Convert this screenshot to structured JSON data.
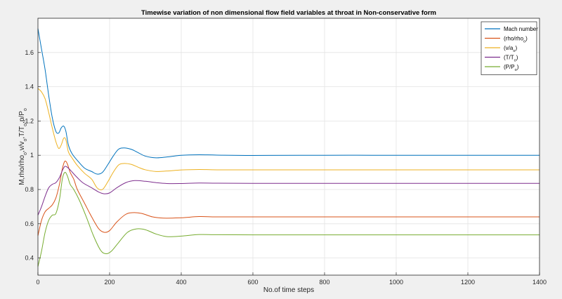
{
  "chart_data": {
    "type": "line",
    "title": "Timewise variation of non dimensional flow field variables at throat in Non-conservative form",
    "xlabel": "No.of time steps",
    "ylabel": "M,rho/rho",
    "ylabel_parts": [
      {
        "t": "M,rho/rho",
        "sub": false
      },
      {
        "t": "o",
        "sub": true
      },
      {
        "t": ",v/v",
        "sub": false
      },
      {
        "t": "o",
        "sub": true
      },
      {
        "t": ",T/T",
        "sub": false
      },
      {
        "t": "o",
        "sub": true
      },
      {
        "t": ",p/P",
        "sub": false
      },
      {
        "t": "o",
        "sub": true
      }
    ],
    "xlim": [
      0,
      1400
    ],
    "ylim": [
      0.3,
      1.8
    ],
    "xticks": [
      0,
      200,
      400,
      600,
      800,
      1000,
      1200,
      1400
    ],
    "yticks": [
      0.4,
      0.6,
      0.8,
      1.0,
      1.2,
      1.4,
      1.6
    ],
    "ytick_labels": [
      "0.4",
      "0.6",
      "0.8",
      "1",
      "1.2",
      "1.4",
      "1.6"
    ],
    "grid": true,
    "legend_position": "top-right",
    "series": [
      {
        "name": "Mach number",
        "color": "#0072BD",
        "label_parts": [
          {
            "t": "Mach number",
            "sub": false
          }
        ],
        "points": [
          [
            0,
            1.74
          ],
          [
            10,
            1.62
          ],
          [
            20,
            1.5
          ],
          [
            30,
            1.35
          ],
          [
            40,
            1.22
          ],
          [
            50,
            1.14
          ],
          [
            58,
            1.13
          ],
          [
            65,
            1.16
          ],
          [
            72,
            1.17
          ],
          [
            78,
            1.14
          ],
          [
            85,
            1.06
          ],
          [
            95,
            1.01
          ],
          [
            110,
            0.97
          ],
          [
            130,
            0.925
          ],
          [
            150,
            0.905
          ],
          [
            165,
            0.89
          ],
          [
            180,
            0.9
          ],
          [
            195,
            0.945
          ],
          [
            210,
            0.995
          ],
          [
            225,
            1.035
          ],
          [
            240,
            1.043
          ],
          [
            260,
            1.035
          ],
          [
            280,
            1.015
          ],
          [
            300,
            0.995
          ],
          [
            330,
            0.985
          ],
          [
            360,
            0.99
          ],
          [
            400,
            1.0
          ],
          [
            450,
            1.003
          ],
          [
            500,
            1.001
          ],
          [
            600,
            0.999
          ],
          [
            800,
            1.0
          ],
          [
            1000,
            1.0
          ],
          [
            1200,
            1.0
          ],
          [
            1400,
            1.0
          ]
        ]
      },
      {
        "name": "(rho/rho_o)",
        "color": "#D95319",
        "label_parts": [
          {
            "t": "(rho/rho",
            "sub": false
          },
          {
            "t": "o",
            "sub": true
          },
          {
            "t": ")",
            "sub": false
          }
        ],
        "points": [
          [
            0,
            0.53
          ],
          [
            10,
            0.62
          ],
          [
            20,
            0.67
          ],
          [
            30,
            0.69
          ],
          [
            40,
            0.71
          ],
          [
            50,
            0.75
          ],
          [
            60,
            0.83
          ],
          [
            68,
            0.92
          ],
          [
            75,
            0.965
          ],
          [
            82,
            0.95
          ],
          [
            90,
            0.9
          ],
          [
            100,
            0.86
          ],
          [
            110,
            0.8
          ],
          [
            130,
            0.72
          ],
          [
            150,
            0.64
          ],
          [
            170,
            0.57
          ],
          [
            185,
            0.55
          ],
          [
            200,
            0.56
          ],
          [
            220,
            0.61
          ],
          [
            245,
            0.655
          ],
          [
            265,
            0.665
          ],
          [
            290,
            0.66
          ],
          [
            320,
            0.64
          ],
          [
            350,
            0.633
          ],
          [
            400,
            0.635
          ],
          [
            450,
            0.642
          ],
          [
            500,
            0.64
          ],
          [
            600,
            0.64
          ],
          [
            800,
            0.64
          ],
          [
            1000,
            0.64
          ],
          [
            1200,
            0.64
          ],
          [
            1400,
            0.64
          ]
        ]
      },
      {
        "name": "(v/a_o)",
        "color": "#EDB120",
        "label_parts": [
          {
            "t": "(v/a",
            "sub": false
          },
          {
            "t": "o",
            "sub": true
          },
          {
            "t": ")",
            "sub": false
          }
        ],
        "points": [
          [
            0,
            1.39
          ],
          [
            10,
            1.37
          ],
          [
            20,
            1.33
          ],
          [
            30,
            1.25
          ],
          [
            40,
            1.16
          ],
          [
            50,
            1.08
          ],
          [
            58,
            1.04
          ],
          [
            65,
            1.06
          ],
          [
            72,
            1.1
          ],
          [
            78,
            1.09
          ],
          [
            85,
            1.02
          ],
          [
            95,
            0.985
          ],
          [
            110,
            0.94
          ],
          [
            130,
            0.895
          ],
          [
            150,
            0.86
          ],
          [
            165,
            0.81
          ],
          [
            180,
            0.8
          ],
          [
            195,
            0.845
          ],
          [
            210,
            0.9
          ],
          [
            225,
            0.943
          ],
          [
            240,
            0.952
          ],
          [
            260,
            0.947
          ],
          [
            280,
            0.93
          ],
          [
            300,
            0.915
          ],
          [
            330,
            0.905
          ],
          [
            360,
            0.908
          ],
          [
            400,
            0.914
          ],
          [
            450,
            0.917
          ],
          [
            500,
            0.915
          ],
          [
            600,
            0.915
          ],
          [
            800,
            0.915
          ],
          [
            1000,
            0.915
          ],
          [
            1200,
            0.915
          ],
          [
            1400,
            0.915
          ]
        ]
      },
      {
        "name": "(T/T_o)",
        "color": "#7E2F8E",
        "label_parts": [
          {
            "t": "(T/T",
            "sub": false
          },
          {
            "t": "o",
            "sub": true
          },
          {
            "t": ")",
            "sub": false
          }
        ],
        "points": [
          [
            0,
            0.65
          ],
          [
            10,
            0.7
          ],
          [
            20,
            0.76
          ],
          [
            30,
            0.81
          ],
          [
            40,
            0.83
          ],
          [
            50,
            0.84
          ],
          [
            60,
            0.87
          ],
          [
            68,
            0.91
          ],
          [
            75,
            0.935
          ],
          [
            82,
            0.93
          ],
          [
            92,
            0.91
          ],
          [
            105,
            0.88
          ],
          [
            125,
            0.84
          ],
          [
            150,
            0.81
          ],
          [
            170,
            0.785
          ],
          [
            185,
            0.775
          ],
          [
            200,
            0.78
          ],
          [
            220,
            0.81
          ],
          [
            245,
            0.84
          ],
          [
            270,
            0.852
          ],
          [
            300,
            0.848
          ],
          [
            330,
            0.84
          ],
          [
            360,
            0.835
          ],
          [
            400,
            0.835
          ],
          [
            450,
            0.838
          ],
          [
            500,
            0.837
          ],
          [
            600,
            0.836
          ],
          [
            800,
            0.836
          ],
          [
            1000,
            0.836
          ],
          [
            1200,
            0.836
          ],
          [
            1400,
            0.836
          ]
        ]
      },
      {
        "name": "(P/P_o)",
        "color": "#77AC30",
        "label_parts": [
          {
            "t": "(P/P",
            "sub": false
          },
          {
            "t": "o",
            "sub": true
          },
          {
            "t": ")",
            "sub": false
          }
        ],
        "points": [
          [
            0,
            0.35
          ],
          [
            10,
            0.44
          ],
          [
            20,
            0.55
          ],
          [
            30,
            0.62
          ],
          [
            40,
            0.65
          ],
          [
            50,
            0.66
          ],
          [
            60,
            0.74
          ],
          [
            68,
            0.86
          ],
          [
            75,
            0.9
          ],
          [
            82,
            0.88
          ],
          [
            90,
            0.83
          ],
          [
            100,
            0.8
          ],
          [
            115,
            0.74
          ],
          [
            135,
            0.64
          ],
          [
            155,
            0.53
          ],
          [
            175,
            0.445
          ],
          [
            190,
            0.425
          ],
          [
            205,
            0.44
          ],
          [
            225,
            0.49
          ],
          [
            250,
            0.55
          ],
          [
            275,
            0.57
          ],
          [
            300,
            0.565
          ],
          [
            330,
            0.54
          ],
          [
            360,
            0.525
          ],
          [
            400,
            0.528
          ],
          [
            450,
            0.537
          ],
          [
            500,
            0.536
          ],
          [
            600,
            0.535
          ],
          [
            800,
            0.535
          ],
          [
            1000,
            0.535
          ],
          [
            1200,
            0.535
          ],
          [
            1400,
            0.535
          ]
        ]
      }
    ]
  }
}
